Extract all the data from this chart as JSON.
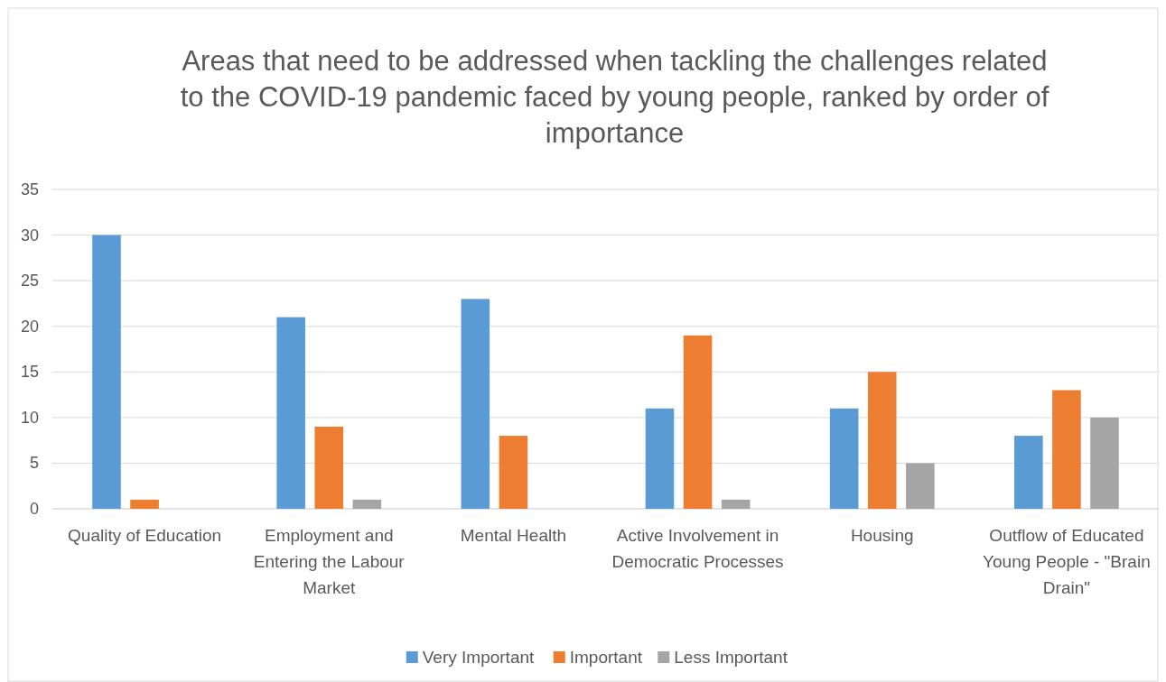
{
  "chart_data": {
    "type": "bar",
    "title": "Areas that need to be addressed when tackling the challenges related to the COVID-19 pandemic faced by young people, ranked by order of importance",
    "categories": [
      "Quality of Education",
      "Employment and Entering the Labour Market",
      "Mental Health",
      "Active Involvement in Democratic Processes",
      "Housing",
      "Outflow of Educated Young People - \"Brain Drain\""
    ],
    "series": [
      {
        "name": "Very Important",
        "color": "#5b9bd5",
        "values": [
          30,
          21,
          23,
          11,
          11,
          8
        ]
      },
      {
        "name": "Important",
        "color": "#ed7d31",
        "values": [
          1,
          9,
          8,
          19,
          15,
          13
        ]
      },
      {
        "name": "Less Important",
        "color": "#a5a5a5",
        "values": [
          0,
          1,
          0,
          1,
          5,
          10
        ]
      }
    ],
    "ylim": [
      0,
      35
    ],
    "yticks": [
      0,
      5,
      10,
      15,
      20,
      25,
      30,
      35
    ],
    "grid": "y",
    "legend": "bottom"
  }
}
